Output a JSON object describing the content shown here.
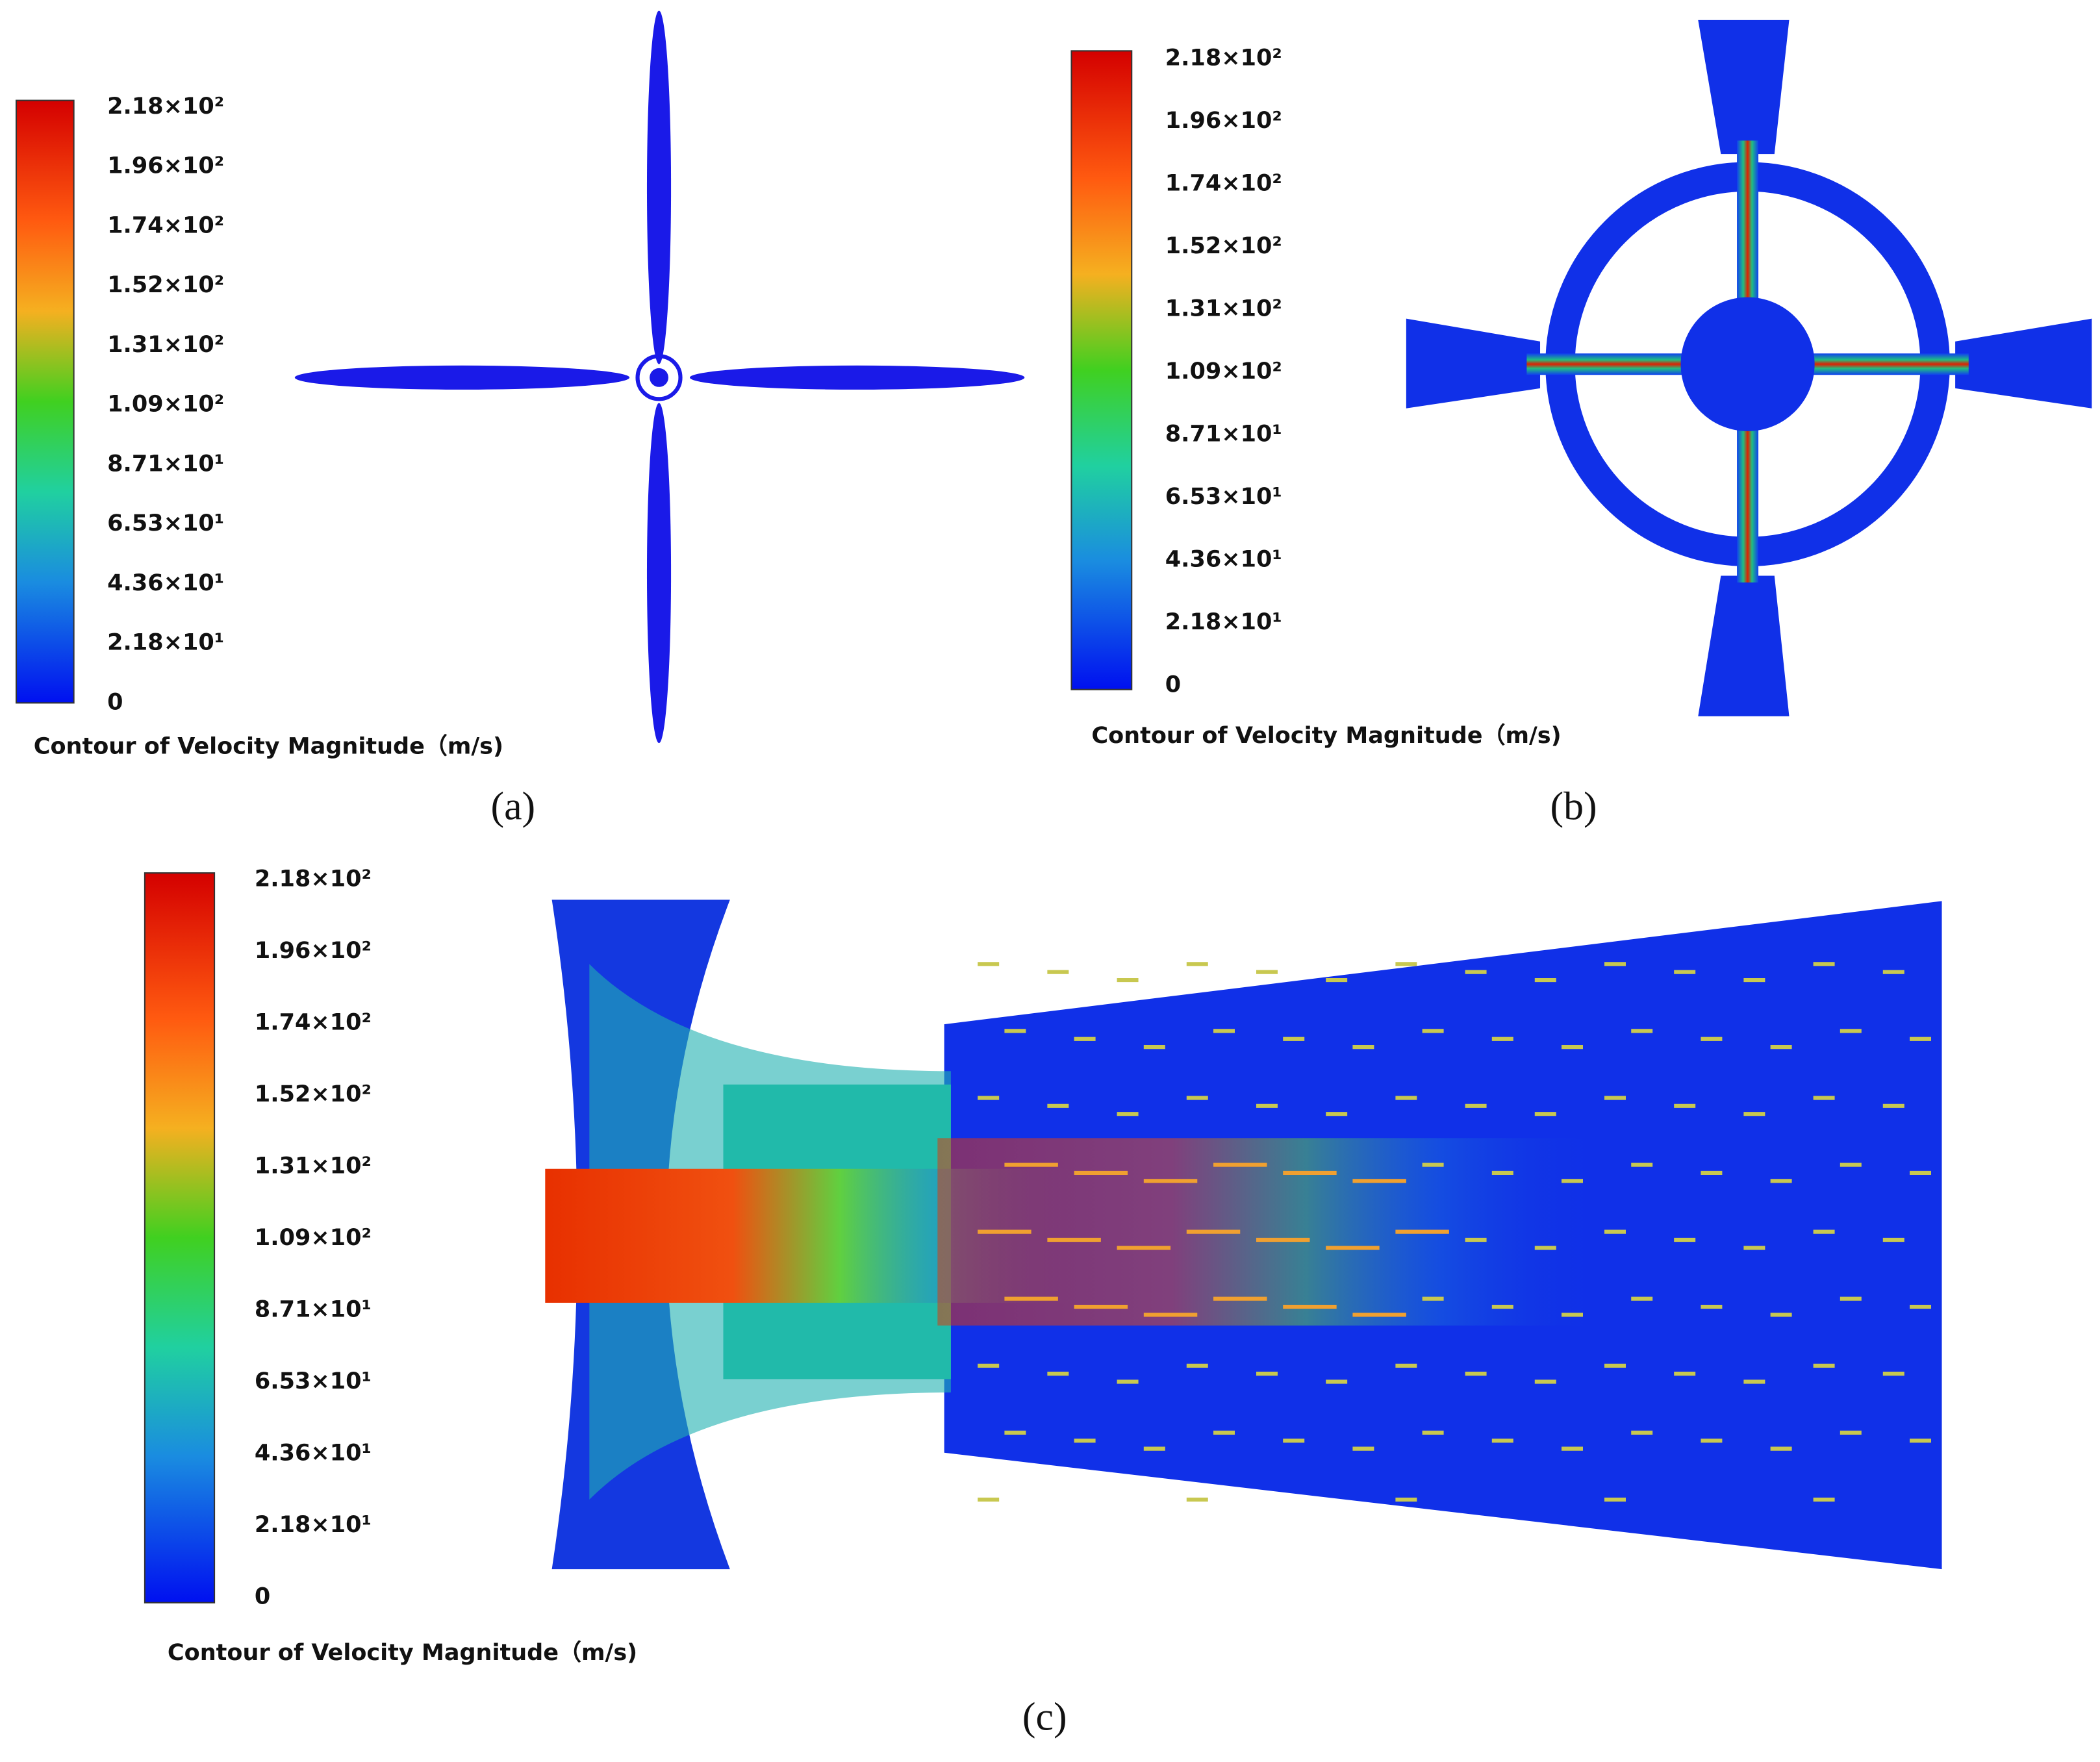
{
  "panels": [
    {
      "caption": "(a)",
      "colorbar_title": "Contour of Velocity Magnitude（m/s)",
      "colorbar_ticks": [
        "2.18×10²",
        "1.96×10²",
        "1.74×10²",
        "1.52×10²",
        "1.31×10²",
        "1.09×10²",
        "8.71×10¹",
        "6.53×10¹",
        "4.36×10¹",
        "2.18×10¹",
        "0"
      ]
    },
    {
      "caption": "(b)",
      "colorbar_title": "Contour of Velocity Magnitude（m/s)",
      "colorbar_ticks": [
        "2.18×10²",
        "1.96×10²",
        "1.74×10²",
        "1.52×10²",
        "1.31×10²",
        "1.09×10²",
        "8.71×10¹",
        "6.53×10¹",
        "4.36×10¹",
        "2.18×10¹",
        "0"
      ]
    },
    {
      "caption": "(c)",
      "colorbar_title": "Contour of Velocity Magnitude（m/s)",
      "colorbar_ticks": [
        "2.18×10²",
        "1.96×10²",
        "1.74×10²",
        "1.52×10²",
        "1.31×10²",
        "1.09×10²",
        "8.71×10¹",
        "6.53×10¹",
        "4.36×10¹",
        "2.18×10¹",
        "0"
      ]
    }
  ]
}
